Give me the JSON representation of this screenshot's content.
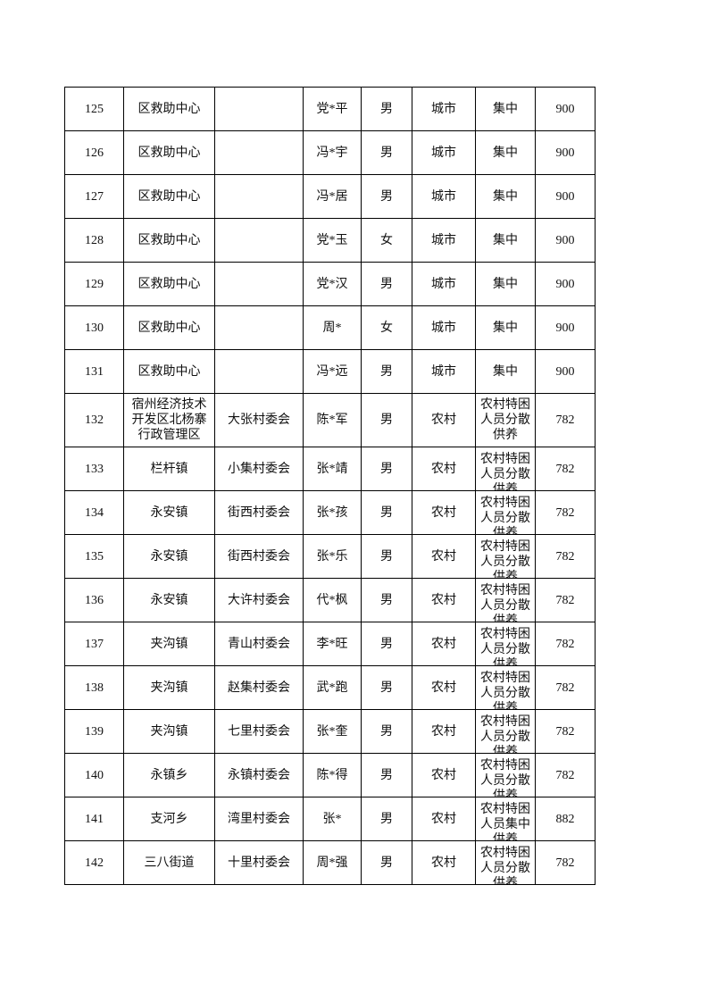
{
  "rows": [
    {
      "no": "125",
      "area": "区救助中心",
      "village": "",
      "name": "党*平",
      "gender": "男",
      "type": "城市",
      "support": "集中",
      "amount": "900"
    },
    {
      "no": "126",
      "area": "区救助中心",
      "village": "",
      "name": "冯*宇",
      "gender": "男",
      "type": "城市",
      "support": "集中",
      "amount": "900"
    },
    {
      "no": "127",
      "area": "区救助中心",
      "village": "",
      "name": "冯*居",
      "gender": "男",
      "type": "城市",
      "support": "集中",
      "amount": "900"
    },
    {
      "no": "128",
      "area": "区救助中心",
      "village": "",
      "name": "党*玉",
      "gender": "女",
      "type": "城市",
      "support": "集中",
      "amount": "900"
    },
    {
      "no": "129",
      "area": "区救助中心",
      "village": "",
      "name": "党*汉",
      "gender": "男",
      "type": "城市",
      "support": "集中",
      "amount": "900"
    },
    {
      "no": "130",
      "area": "区救助中心",
      "village": "",
      "name": "周*",
      "gender": "女",
      "type": "城市",
      "support": "集中",
      "amount": "900"
    },
    {
      "no": "131",
      "area": "区救助中心",
      "village": "",
      "name": "冯*远",
      "gender": "男",
      "type": "城市",
      "support": "集中",
      "amount": "900"
    },
    {
      "no": "132",
      "area": "宿州经济技术开发区北杨寨行政管理区",
      "village": "大张村委会",
      "name": "陈*军",
      "gender": "男",
      "type": "农村",
      "support": "农村特困人员分散供养",
      "amount": "782"
    },
    {
      "no": "133",
      "area": "栏杆镇",
      "village": "小集村委会",
      "name": "张*靖",
      "gender": "男",
      "type": "农村",
      "support": "农村特困人员分散供养",
      "amount": "782"
    },
    {
      "no": "134",
      "area": "永安镇",
      "village": "街西村委会",
      "name": "张*孩",
      "gender": "男",
      "type": "农村",
      "support": "农村特困人员分散供养",
      "amount": "782"
    },
    {
      "no": "135",
      "area": "永安镇",
      "village": "街西村委会",
      "name": "张*乐",
      "gender": "男",
      "type": "农村",
      "support": "农村特困人员分散供养",
      "amount": "782"
    },
    {
      "no": "136",
      "area": "永安镇",
      "village": "大许村委会",
      "name": "代*枫",
      "gender": "男",
      "type": "农村",
      "support": "农村特困人员分散供养",
      "amount": "782"
    },
    {
      "no": "137",
      "area": "夹沟镇",
      "village": "青山村委会",
      "name": "李*旺",
      "gender": "男",
      "type": "农村",
      "support": "农村特困人员分散供养",
      "amount": "782"
    },
    {
      "no": "138",
      "area": "夹沟镇",
      "village": "赵集村委会",
      "name": "武*跑",
      "gender": "男",
      "type": "农村",
      "support": "农村特困人员分散供养",
      "amount": "782"
    },
    {
      "no": "139",
      "area": "夹沟镇",
      "village": "七里村委会",
      "name": "张*奎",
      "gender": "男",
      "type": "农村",
      "support": "农村特困人员分散供养",
      "amount": "782"
    },
    {
      "no": "140",
      "area": "永镇乡",
      "village": "永镇村委会",
      "name": "陈*得",
      "gender": "男",
      "type": "农村",
      "support": "农村特困人员分散供养",
      "amount": "782"
    },
    {
      "no": "141",
      "area": "支河乡",
      "village": "湾里村委会",
      "name": "张*",
      "gender": "男",
      "type": "农村",
      "support": "农村特困人员集中供养",
      "amount": "882"
    },
    {
      "no": "142",
      "area": "三八街道",
      "village": "十里村委会",
      "name": "周*强",
      "gender": "男",
      "type": "农村",
      "support": "农村特困人员分散供养",
      "amount": "782"
    }
  ]
}
